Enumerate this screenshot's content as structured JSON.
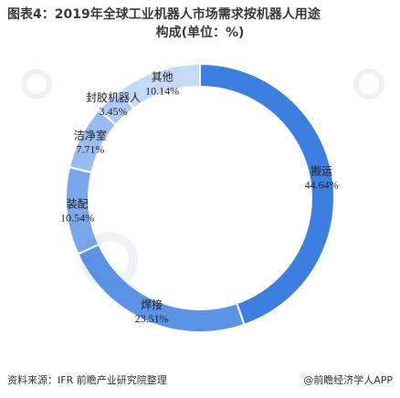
{
  "header": {
    "title_line1": "图表4：2019年全球工业机器人市场需求按机器人用途",
    "title_line2": "构成(单位：%)"
  },
  "footer": {
    "source": "资料来源：IFR 前瞻产业研究院整理",
    "credit": "@前瞻经济学人APP"
  },
  "chart_data": {
    "type": "pie",
    "style": "donut",
    "title": "2019年全球工业机器人市场需求按机器人用途构成(单位：%)",
    "categories": [
      "搬运",
      "焊接",
      "装配",
      "洁净室",
      "封胶机器人",
      "其他"
    ],
    "values": [
      44.64,
      23.51,
      10.54,
      7.71,
      3.45,
      10.14
    ],
    "value_labels": [
      "44.64%",
      "23.51%",
      "10.54%",
      "7.71%",
      "3.45%",
      "10.14%"
    ],
    "colors": [
      "#3c7fe0",
      "#5b93e6",
      "#7aa7eb",
      "#98bcef",
      "#adc9f2",
      "#c5daf6"
    ],
    "start_angle": "12 o'clock",
    "direction": "clockwise",
    "legend": "none"
  }
}
